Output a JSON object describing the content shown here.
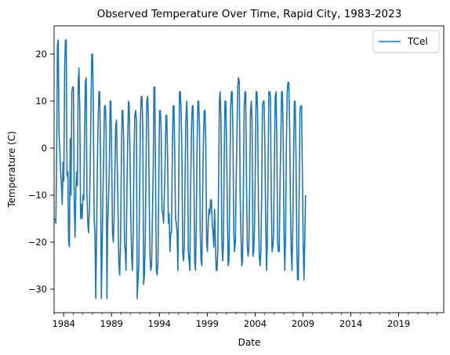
{
  "chart_data": {
    "type": "line",
    "title": "Observed Temperature Over Time, Rapid City, 1983-2023",
    "xlabel": "Date",
    "ylabel": "Temperature (C)",
    "xlim": [
      1983.0,
      2023.7
    ],
    "ylim": [
      -35,
      26
    ],
    "x_major_ticks": [
      1984,
      1989,
      1994,
      1999,
      2004,
      2009,
      2014,
      2019
    ],
    "x_major_labels": [
      "1984",
      "1989",
      "1994",
      "1999",
      "2004",
      "2009",
      "2014",
      "2019"
    ],
    "y_ticks": [
      -30,
      -20,
      -10,
      0,
      10,
      20
    ],
    "y_tick_labels": [
      "−30",
      "−20",
      "−10",
      "0",
      "10",
      "20"
    ],
    "grid": false,
    "legend": {
      "position": "top-right",
      "entries": [
        "TCel"
      ]
    },
    "series": [
      {
        "name": "TCel",
        "color": "#1f77b4",
        "x_start": 1983.1,
        "x_step": 0.08333,
        "values": [
          -15,
          -16,
          -1,
          22,
          23,
          3,
          -1,
          -5,
          -8,
          -12,
          -3,
          -7,
          17,
          23,
          23,
          -6,
          -5,
          -20,
          -21,
          2,
          -10,
          12,
          13,
          13,
          -11,
          -19,
          -10,
          -5,
          -8,
          14,
          17,
          8,
          -15,
          -12,
          -15,
          -10,
          -11,
          3,
          14,
          15,
          -10,
          -16,
          -18,
          -13,
          -5,
          8,
          20,
          20,
          9,
          -15,
          -18,
          -32,
          -20,
          -4,
          6,
          12,
          12,
          -2,
          -32,
          -22,
          -10,
          -1,
          9,
          9,
          5,
          -32,
          -16,
          -11,
          -5,
          10,
          10,
          -2,
          -18,
          -20,
          -15,
          -5,
          5,
          6,
          -4,
          -14,
          -25,
          -27,
          -21,
          -5,
          8,
          8,
          2,
          -20,
          -22,
          -26,
          -10,
          1,
          10,
          9,
          -2,
          -15,
          -23,
          -26,
          -18,
          -1,
          7,
          8,
          6,
          -32,
          -28,
          -25,
          -10,
          6,
          11,
          11,
          4,
          -29,
          -27,
          -20,
          -5,
          10,
          11,
          7,
          -10,
          -23,
          -26,
          -25,
          -15,
          -5,
          13,
          13,
          -7,
          -26,
          -27,
          -24,
          -8,
          8,
          8,
          4,
          -13,
          -14,
          -16,
          -10,
          -3,
          7,
          7,
          -1,
          -16,
          -14,
          -22,
          -18,
          -18,
          -1,
          9,
          9,
          -1,
          -15,
          -16,
          -18,
          -26,
          -8,
          12,
          12,
          8,
          -1,
          -22,
          -24,
          -21,
          -6,
          6,
          10,
          5,
          -22,
          -24,
          -26,
          -8,
          4,
          9,
          9,
          -5,
          -24,
          -26,
          -17,
          0,
          10,
          10,
          5,
          -18,
          -24,
          -25,
          -10,
          2,
          8,
          8,
          0,
          -20,
          -22,
          -16,
          -13,
          -14,
          -11,
          -11,
          -16,
          -18,
          -21,
          -13,
          -20,
          -26,
          -26,
          -22,
          -8,
          10,
          12,
          6,
          -19,
          -24,
          -21,
          -3,
          10,
          10,
          1,
          -14,
          -25,
          -24,
          -10,
          8,
          12,
          12,
          3,
          -18,
          -22,
          -20,
          -8,
          3,
          13,
          15,
          14,
          -10,
          -18,
          -25,
          -24,
          -10,
          8,
          12,
          12,
          -8,
          -21,
          -23,
          -21,
          -8,
          8,
          10,
          6,
          -23,
          -22,
          -17,
          -5,
          12,
          12,
          7,
          -14,
          -23,
          -25,
          -22,
          -10,
          9,
          10,
          10,
          1,
          -15,
          -26,
          -21,
          -5,
          12,
          12,
          11,
          -10,
          -22,
          -21,
          -18,
          -2,
          11,
          12,
          2,
          -20,
          -22,
          -22,
          -8,
          2,
          12,
          12,
          2,
          -18,
          -26,
          -18,
          1,
          12,
          14,
          14,
          5,
          -11,
          -22,
          -26,
          -17,
          -2,
          10,
          10,
          -1,
          -20,
          -28,
          -28,
          -10,
          8,
          9,
          9,
          -5,
          -20,
          -28,
          -20,
          -10
        ]
      }
    ]
  }
}
